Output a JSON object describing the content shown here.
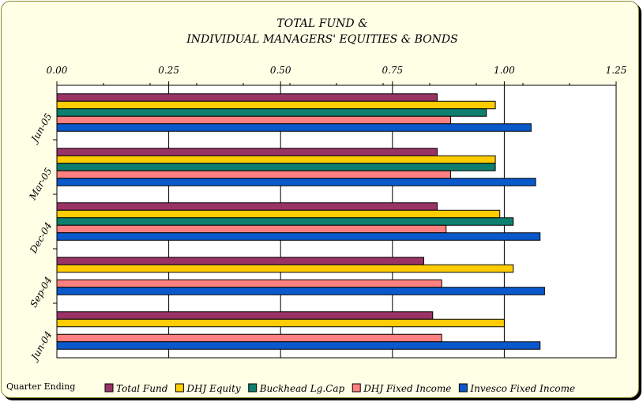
{
  "chart_data": {
    "type": "bar",
    "orientation": "horizontal",
    "title_lines": [
      "TOTAL FUND &",
      "INDIVIDUAL MANAGERS' EQUITIES & BONDS"
    ],
    "xlabel": "Quarter Ending",
    "xlim": [
      0,
      1.25
    ],
    "x_ticks": [
      "0.00",
      "0.25",
      "0.50",
      "0.75",
      "1.00",
      "1.25"
    ],
    "x_tick_values": [
      0,
      0.25,
      0.5,
      0.75,
      1.0,
      1.25
    ],
    "categories": [
      "Jun-05",
      "Mar-05",
      "Dec-04",
      "Sep-04",
      "Jun-04"
    ],
    "grid": true,
    "legend_position": "bottom",
    "series": [
      {
        "name": "Total Fund",
        "color": "#993366",
        "values": [
          0.85,
          0.85,
          0.85,
          0.82,
          0.84
        ]
      },
      {
        "name": "DHJ Equity",
        "color": "#ffcc00",
        "values": [
          0.98,
          0.98,
          0.99,
          1.02,
          1.0
        ]
      },
      {
        "name": "Buckhead Lg.Cap",
        "color": "#0e7f6e",
        "values": [
          0.96,
          0.98,
          1.02,
          null,
          null
        ]
      },
      {
        "name": "DHJ Fixed Income",
        "color": "#ff8080",
        "values": [
          0.88,
          0.88,
          0.87,
          0.86,
          0.86
        ]
      },
      {
        "name": "Invesco Fixed Income",
        "color": "#0a59cc",
        "values": [
          1.06,
          1.07,
          1.08,
          1.09,
          1.08
        ]
      }
    ]
  }
}
